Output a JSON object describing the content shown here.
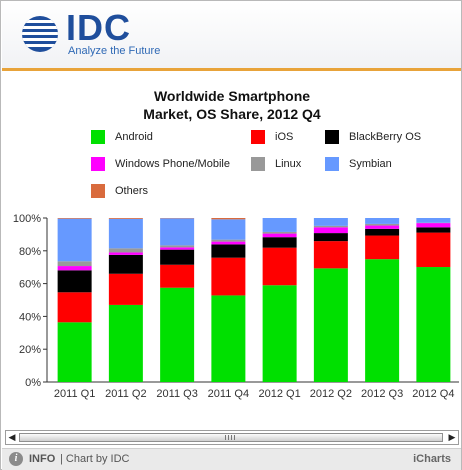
{
  "header": {
    "logo_text": "IDC",
    "tagline": "Analyze the Future"
  },
  "chart_data": {
    "type": "bar",
    "stacked": true,
    "title_line1": "Worldwide Smartphone",
    "title_line2": "Market, OS Share, 2012 Q4",
    "categories": [
      "2011 Q1",
      "2011 Q2",
      "2011 Q3",
      "2011 Q4",
      "2012 Q1",
      "2012 Q2",
      "2012 Q3",
      "2012 Q4"
    ],
    "ylim": [
      0,
      100
    ],
    "yticks": [
      "0%",
      "20%",
      "40%",
      "60%",
      "80%",
      "100%"
    ],
    "grid": false,
    "legend_position": "top",
    "series": [
      {
        "name": "Android",
        "color": "#00e000",
        "values": [
          36.4,
          47.0,
          57.5,
          52.8,
          59.0,
          69.3,
          74.9,
          70.1
        ]
      },
      {
        "name": "iOS",
        "color": "#ff0000",
        "values": [
          18.3,
          19.0,
          14.0,
          23.0,
          22.9,
          16.6,
          14.4,
          21.0
        ]
      },
      {
        "name": "BlackBerry OS",
        "color": "#000000",
        "values": [
          13.4,
          11.5,
          9.2,
          8.1,
          6.4,
          4.9,
          4.1,
          3.2
        ]
      },
      {
        "name": "Windows Phone/Mobile",
        "color": "#ff00ff",
        "values": [
          2.6,
          1.5,
          1.4,
          1.7,
          2.2,
          3.5,
          2.0,
          2.6
        ]
      },
      {
        "name": "Linux",
        "color": "#999999",
        "values": [
          2.9,
          2.5,
          1.2,
          1.2,
          1.0,
          0.9,
          1.0,
          0.2
        ]
      },
      {
        "name": "Symbian",
        "color": "#6699ff",
        "values": [
          26.0,
          18.0,
          16.5,
          12.4,
          8.5,
          4.8,
          3.6,
          2.9
        ]
      },
      {
        "name": "Others",
        "color": "#d96b3d",
        "values": [
          0.4,
          0.5,
          0.2,
          0.8,
          0.0,
          0.0,
          0.0,
          0.0
        ]
      }
    ]
  },
  "scrollbar": {
    "left_arrow": "◀",
    "right_arrow": "▶"
  },
  "footer": {
    "info_icon_glyph": "i",
    "info_label": "INFO",
    "chart_by": "| Chart by IDC",
    "brand": "iCharts"
  }
}
